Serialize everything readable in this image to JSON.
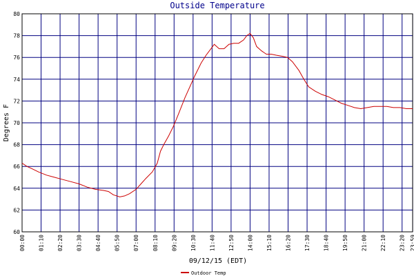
{
  "chart_data": {
    "type": "line",
    "title": "Outside Temperature",
    "xlabel": "09/12/15 (EDT)",
    "ylabel": "Degrees F",
    "ylim": [
      60,
      80
    ],
    "yticks": [
      60,
      62,
      64,
      66,
      68,
      70,
      72,
      74,
      76,
      78,
      80
    ],
    "xticks": [
      "00:00",
      "01:10",
      "02:20",
      "03:30",
      "04:40",
      "05:50",
      "07:00",
      "08:10",
      "09:20",
      "10:30",
      "11:40",
      "12:50",
      "14:00",
      "15:10",
      "16:20",
      "17:30",
      "18:40",
      "19:50",
      "21:00",
      "22:10",
      "23:20",
      "23:59"
    ],
    "grid": true,
    "legend_position": "bottom-center",
    "series": [
      {
        "name": "Outdoor Temp",
        "color": "#cc0000",
        "x_hours": [
          0.0,
          0.3,
          0.6,
          1.0,
          1.5,
          2.0,
          2.5,
          3.0,
          3.5,
          4.0,
          4.5,
          5.0,
          5.3,
          5.6,
          6.0,
          6.3,
          6.6,
          7.0,
          7.3,
          7.6,
          8.0,
          8.3,
          8.5,
          8.7,
          9.0,
          9.3,
          9.6,
          10.0,
          10.3,
          10.6,
          11.0,
          11.3,
          11.6,
          11.8,
          12.1,
          12.4,
          12.7,
          13.0,
          13.3,
          13.6,
          13.8,
          14.0,
          14.2,
          14.4,
          14.7,
          15.0,
          15.3,
          15.6,
          16.0,
          16.3,
          16.6,
          17.0,
          17.3,
          17.6,
          18.0,
          18.4,
          18.8,
          19.2,
          19.6,
          20.0,
          20.4,
          20.8,
          21.2,
          21.6,
          22.0,
          22.4,
          22.8,
          23.2,
          23.6,
          23.98
        ],
        "values": [
          66.3,
          66.0,
          65.8,
          65.5,
          65.2,
          65.0,
          64.8,
          64.6,
          64.4,
          64.1,
          63.9,
          63.8,
          63.7,
          63.4,
          63.2,
          63.3,
          63.5,
          63.9,
          64.4,
          64.9,
          65.5,
          66.3,
          67.4,
          68.0,
          68.8,
          69.7,
          70.8,
          72.3,
          73.3,
          74.3,
          75.5,
          76.2,
          76.8,
          77.2,
          76.8,
          76.8,
          77.2,
          77.3,
          77.3,
          77.6,
          78.0,
          78.2,
          77.8,
          77.0,
          76.6,
          76.3,
          76.3,
          76.2,
          76.1,
          76.0,
          75.6,
          74.8,
          74.0,
          73.3,
          72.9,
          72.6,
          72.4,
          72.1,
          71.8,
          71.6,
          71.4,
          71.3,
          71.4,
          71.5,
          71.5,
          71.5,
          71.4,
          71.4,
          71.3,
          71.3
        ]
      }
    ]
  }
}
